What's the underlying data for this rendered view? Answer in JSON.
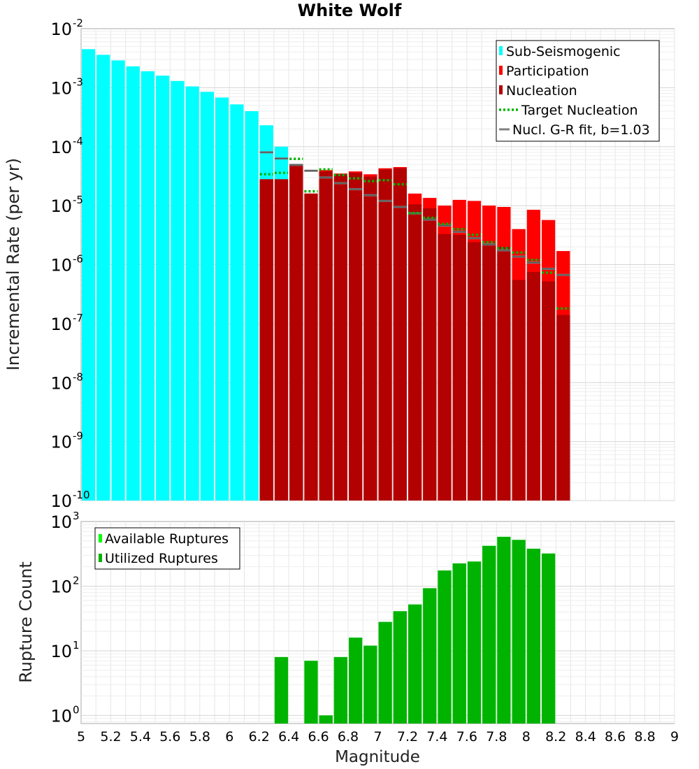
{
  "chart_data": [
    {
      "type": "bar",
      "title": "White Wolf",
      "xlabel": "",
      "ylabel": "Incremental Rate (per yr)",
      "y_scale": "log",
      "xlim": [
        5,
        9
      ],
      "ylim": [
        1e-10,
        0.01
      ],
      "y_ticks": [
        {
          "base": "10",
          "exp": "-2"
        },
        {
          "base": "10",
          "exp": "-3"
        },
        {
          "base": "10",
          "exp": "-4"
        },
        {
          "base": "10",
          "exp": "-5"
        },
        {
          "base": "10",
          "exp": "-6"
        },
        {
          "base": "10",
          "exp": "-7"
        },
        {
          "base": "10",
          "exp": "-8"
        },
        {
          "base": "10",
          "exp": "-9"
        },
        {
          "base": "10",
          "exp": "-10"
        }
      ],
      "legend_position": "top-right",
      "legend": [
        "Sub-Seismogenic",
        "Participation",
        "Nucleation",
        "Target Nucleation",
        "Nucl. G-R fit, b=1.03"
      ],
      "colors": {
        "sub_seismogenic": "#00ffff",
        "participation": "#ff0000",
        "nucleation": "#b30000",
        "target_nucleation": "#00b300",
        "gr_fit": "#808080"
      },
      "bin_width": 0.1,
      "sub_seismogenic": {
        "x": [
          5.05,
          5.15,
          5.25,
          5.35,
          5.45,
          5.55,
          5.65,
          5.75,
          5.85,
          5.95,
          6.05,
          6.15,
          6.25,
          6.35
        ],
        "values": [
          0.0045,
          0.0036,
          0.0029,
          0.0023,
          0.0019,
          0.0016,
          0.0013,
          0.00105,
          0.00085,
          0.00068,
          0.00052,
          0.0004,
          0.00023,
          0.0001
        ]
      },
      "participation": {
        "x": [
          6.25,
          6.35,
          6.45,
          6.55,
          6.65,
          6.75,
          6.85,
          6.95,
          7.05,
          7.15,
          7.25,
          7.35,
          7.45,
          7.55,
          7.65,
          7.75,
          7.85,
          7.95,
          8.05,
          8.15,
          8.25
        ],
        "values": [
          2.8e-05,
          2.8e-05,
          5e-05,
          1.6e-05,
          4e-05,
          3.5e-05,
          3.8e-05,
          3.4e-05,
          4.3e-05,
          4.5e-05,
          1.6e-05,
          1.35e-05,
          1e-05,
          1.25e-05,
          1.2e-05,
          1e-05,
          9.5e-06,
          4e-06,
          8.5e-06,
          5.7e-06,
          1.7e-06
        ]
      },
      "nucleation": {
        "x": [
          6.25,
          6.35,
          6.45,
          6.55,
          6.65,
          6.75,
          6.85,
          6.95,
          7.05,
          7.15,
          7.25,
          7.35,
          7.45,
          7.55,
          7.65,
          7.75,
          7.85,
          7.95,
          8.05,
          8.15,
          8.25
        ],
        "values": [
          2.8e-05,
          2.8e-05,
          5e-05,
          1.6e-05,
          3.8e-05,
          3.4e-05,
          3.6e-05,
          3.1e-05,
          4.1e-05,
          4.3e-05,
          1.05e-05,
          9e-06,
          3.3e-06,
          3.2e-06,
          2.4e-06,
          2.3e-06,
          2e-06,
          5.5e-07,
          7.5e-07,
          5.2e-07,
          1.4e-07
        ]
      },
      "target_nucleation": {
        "x": [
          6.25,
          6.35,
          6.45,
          6.55,
          6.65,
          6.75,
          6.85,
          6.95,
          7.05,
          7.15,
          7.25,
          7.35,
          7.45,
          7.55,
          7.65,
          7.75,
          7.85,
          7.95,
          8.05,
          8.15,
          8.25
        ],
        "values": [
          3.4e-05,
          3.6e-05,
          6.2e-05,
          1.75e-05,
          4.1e-05,
          3.3e-05,
          2.9e-05,
          2.6e-05,
          2.7e-05,
          2.3e-05,
          7.5e-06,
          6.2e-06,
          4.9e-06,
          4e-06,
          3.2e-06,
          2.4e-06,
          1.9e-06,
          1.6e-06,
          1.2e-06,
          7.3e-07,
          1.8e-07
        ]
      },
      "gr_fit": {
        "x": [
          6.25,
          6.35,
          6.45,
          6.55,
          6.65,
          6.75,
          6.85,
          6.95,
          7.05,
          7.15,
          7.25,
          7.35,
          7.45,
          7.55,
          7.65,
          7.75,
          7.85,
          7.95,
          8.05,
          8.15,
          8.25
        ],
        "values": [
          8e-05,
          6.3e-05,
          4.9e-05,
          3.9e-05,
          3e-05,
          2.4e-05,
          1.9e-05,
          1.5e-05,
          1.2e-05,
          9.5e-06,
          7.4e-06,
          5.8e-06,
          4.6e-06,
          3.6e-06,
          2.8e-06,
          2.2e-06,
          1.75e-06,
          1.37e-06,
          1.08e-06,
          8.5e-07,
          6.7e-07
        ]
      }
    },
    {
      "type": "bar",
      "title": "",
      "xlabel": "Magnitude",
      "ylabel": "Rupture Count",
      "y_scale": "log",
      "xlim": [
        5,
        9
      ],
      "ylim": [
        0.75,
        1000
      ],
      "x_ticks": [
        "5",
        "5.2",
        "5.4",
        "5.6",
        "5.8",
        "6",
        "6.2",
        "6.4",
        "6.6",
        "6.8",
        "7",
        "7.2",
        "7.4",
        "7.6",
        "7.8",
        "8",
        "8.2",
        "8.4",
        "8.6",
        "8.8",
        "9"
      ],
      "y_ticks": [
        {
          "base": "10",
          "exp": "3"
        },
        {
          "base": "10",
          "exp": "2"
        },
        {
          "base": "10",
          "exp": "1"
        },
        {
          "base": "10",
          "exp": "0"
        }
      ],
      "legend_position": "top-left",
      "legend": [
        "Available Ruptures",
        "Utilized Ruptures"
      ],
      "colors": {
        "available": "#00ff00",
        "utilized": "#00b300"
      },
      "bin_width": 0.1,
      "available": {
        "x": [
          6.35,
          6.55,
          6.65,
          6.75,
          6.85,
          6.95,
          7.05,
          7.15,
          7.25,
          7.35,
          7.45,
          7.55,
          7.65,
          7.75,
          7.85,
          7.95,
          8.05,
          8.15
        ],
        "values": [
          8,
          7,
          1,
          8,
          16,
          12,
          28,
          41,
          52,
          93,
          175,
          225,
          240,
          420,
          580,
          520,
          380,
          320
        ]
      },
      "utilized": {
        "x": [
          6.35,
          6.55,
          6.65,
          6.75,
          6.85,
          6.95,
          7.05,
          7.15,
          7.25,
          7.35,
          7.45,
          7.55,
          7.65,
          7.75,
          7.85,
          7.95,
          8.05,
          8.15
        ],
        "values": [
          8,
          7,
          1,
          8,
          16,
          12,
          28,
          41,
          52,
          93,
          175,
          225,
          240,
          420,
          580,
          520,
          380,
          320
        ]
      }
    }
  ]
}
